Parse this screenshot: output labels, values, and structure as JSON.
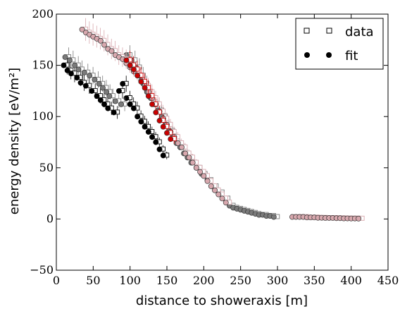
{
  "chart_data": {
    "type": "scatter",
    "xlabel": "distance to showeraxis [m]",
    "ylabel": "energy density [eV/m²]",
    "xlim": [
      0,
      450
    ],
    "ylim": [
      -50,
      200
    ],
    "xticks": [
      "0",
      "50",
      "100",
      "150",
      "200",
      "250",
      "300",
      "350",
      "400",
      "450"
    ],
    "yticks": [
      "−50",
      "0",
      "50",
      "100",
      "150",
      "200"
    ],
    "legend": {
      "position": "top-right",
      "entries": [
        {
          "label": "data",
          "marker": "open-square"
        },
        {
          "label": "fit",
          "marker": "filled-circle"
        }
      ]
    },
    "series": [
      {
        "group": "black",
        "color": "#000000",
        "points": [
          [
            10,
            150
          ],
          [
            15,
            145
          ],
          [
            20,
            142
          ],
          [
            28,
            138
          ],
          [
            33,
            133
          ],
          [
            40,
            130
          ],
          [
            48,
            125
          ],
          [
            55,
            120
          ],
          [
            60,
            116
          ],
          [
            65,
            112
          ],
          [
            70,
            108
          ],
          [
            78,
            104
          ],
          [
            85,
            125
          ],
          [
            90,
            132
          ],
          [
            95,
            118
          ],
          [
            100,
            112
          ],
          [
            105,
            108
          ],
          [
            110,
            100
          ],
          [
            115,
            95
          ],
          [
            120,
            90
          ],
          [
            125,
            85
          ],
          [
            130,
            80
          ],
          [
            135,
            75
          ],
          [
            140,
            68
          ],
          [
            145,
            62
          ]
        ]
      },
      {
        "group": "darkgray",
        "color": "#7a7a7a",
        "points": [
          [
            12,
            158
          ],
          [
            18,
            155
          ],
          [
            25,
            150
          ],
          [
            30,
            146
          ],
          [
            38,
            143
          ],
          [
            45,
            140
          ],
          [
            52,
            136
          ],
          [
            58,
            132
          ],
          [
            63,
            128
          ],
          [
            68,
            124
          ],
          [
            72,
            120
          ],
          [
            80,
            115
          ],
          [
            88,
            112
          ],
          [
            95,
            160
          ],
          [
            102,
            155
          ],
          [
            108,
            148
          ],
          [
            113,
            140
          ],
          [
            118,
            132
          ],
          [
            123,
            124
          ],
          [
            128,
            118
          ],
          [
            133,
            112
          ],
          [
            138,
            106
          ],
          [
            143,
            100
          ],
          [
            148,
            92
          ],
          [
            153,
            86
          ],
          [
            158,
            80
          ],
          [
            163,
            74
          ],
          [
            168,
            70
          ],
          [
            173,
            64
          ],
          [
            178,
            60
          ],
          [
            183,
            55
          ],
          [
            190,
            50
          ],
          [
            197,
            44
          ],
          [
            205,
            38
          ],
          [
            212,
            32
          ],
          [
            220,
            26
          ],
          [
            228,
            20
          ],
          [
            235,
            13
          ],
          [
            240,
            11
          ],
          [
            245,
            10
          ],
          [
            250,
            9
          ],
          [
            255,
            8
          ],
          [
            260,
            7
          ],
          [
            265,
            6
          ],
          [
            270,
            5
          ],
          [
            275,
            4
          ],
          [
            280,
            4
          ],
          [
            285,
            3
          ],
          [
            290,
            3
          ],
          [
            295,
            2
          ]
        ]
      },
      {
        "group": "pink",
        "color": "#d8a8ae",
        "points": [
          [
            35,
            185
          ],
          [
            40,
            182
          ],
          [
            45,
            180
          ],
          [
            50,
            178
          ],
          [
            55,
            176
          ],
          [
            60,
            174
          ],
          [
            65,
            170
          ],
          [
            70,
            166
          ],
          [
            75,
            164
          ],
          [
            80,
            160
          ],
          [
            85,
            158
          ],
          [
            90,
            156
          ],
          [
            95,
            152
          ],
          [
            100,
            148
          ],
          [
            105,
            144
          ],
          [
            110,
            140
          ],
          [
            115,
            135
          ],
          [
            120,
            130
          ],
          [
            125,
            124
          ],
          [
            130,
            118
          ],
          [
            135,
            112
          ],
          [
            140,
            105
          ],
          [
            145,
            98
          ],
          [
            150,
            92
          ],
          [
            155,
            85
          ],
          [
            160,
            80
          ],
          [
            165,
            74
          ],
          [
            170,
            70
          ],
          [
            175,
            64
          ],
          [
            180,
            60
          ],
          [
            185,
            55
          ],
          [
            190,
            50
          ],
          [
            195,
            46
          ],
          [
            200,
            42
          ],
          [
            205,
            37
          ],
          [
            210,
            32
          ],
          [
            215,
            28
          ],
          [
            220,
            24
          ],
          [
            225,
            20
          ],
          [
            230,
            16
          ],
          [
            320,
            2
          ],
          [
            325,
            2
          ],
          [
            330,
            2
          ],
          [
            335,
            2
          ],
          [
            340,
            1.5
          ],
          [
            345,
            1.5
          ],
          [
            350,
            1.5
          ],
          [
            355,
            1.2
          ],
          [
            360,
            1.2
          ],
          [
            365,
            1
          ],
          [
            370,
            1
          ],
          [
            375,
            1
          ],
          [
            380,
            0.8
          ],
          [
            385,
            0.8
          ],
          [
            390,
            0.6
          ],
          [
            395,
            0.6
          ],
          [
            400,
            0.5
          ],
          [
            405,
            0.5
          ],
          [
            410,
            0.4
          ]
        ]
      },
      {
        "group": "red",
        "color": "#cc0000",
        "points": [
          [
            95,
            155
          ],
          [
            100,
            150
          ],
          [
            105,
            146
          ],
          [
            110,
            140
          ],
          [
            115,
            134
          ],
          [
            120,
            128
          ],
          [
            125,
            120
          ],
          [
            130,
            112
          ],
          [
            135,
            104
          ],
          [
            140,
            96
          ],
          [
            145,
            90
          ],
          [
            150,
            84
          ],
          [
            155,
            78
          ]
        ]
      }
    ]
  }
}
